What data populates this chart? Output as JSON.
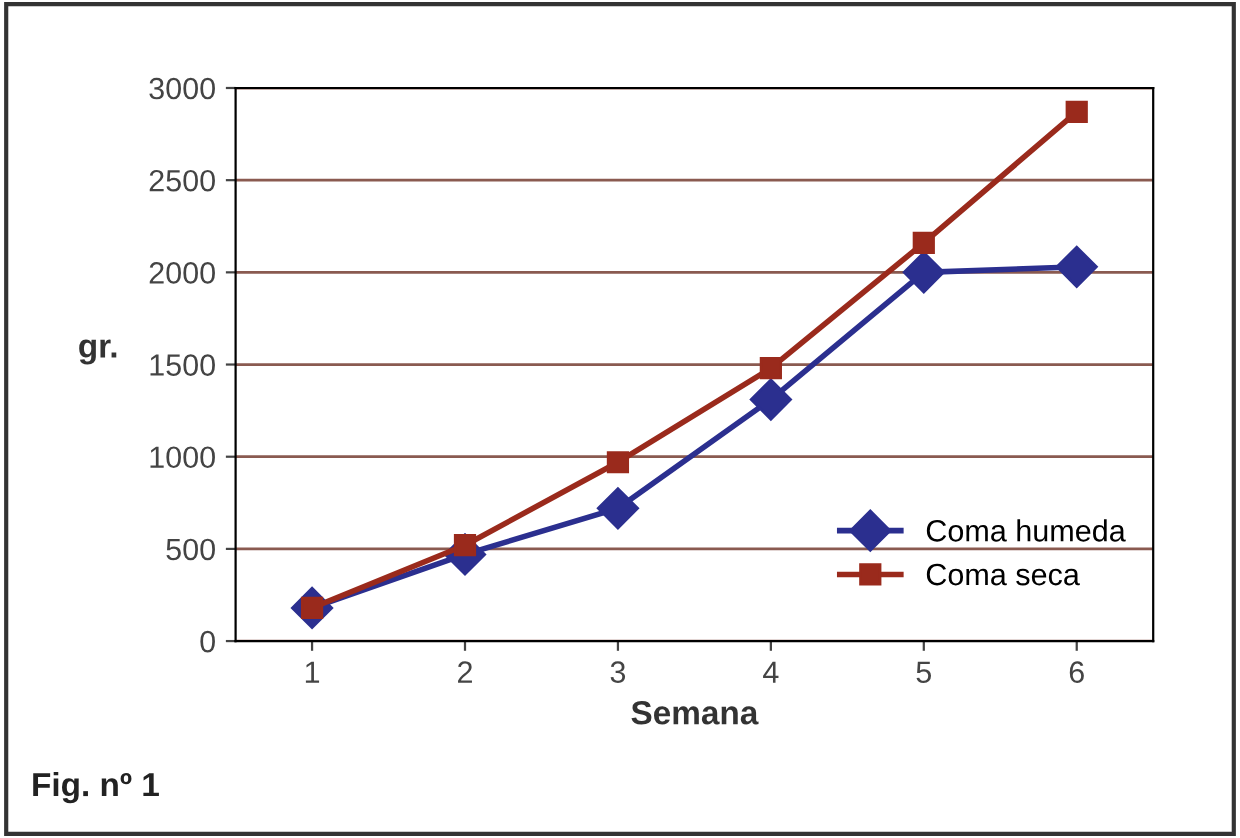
{
  "chart_data": {
    "type": "line",
    "xlabel": "Semana",
    "ylabel": "gr.",
    "categories": [
      "1",
      "2",
      "3",
      "4",
      "5",
      "6"
    ],
    "series": [
      {
        "name": "Coma humeda",
        "color": "#2b2f8f",
        "marker": "diamond",
        "values": [
          180,
          470,
          720,
          1310,
          2000,
          2030
        ]
      },
      {
        "name": "Coma seca",
        "color": "#9a2a1c",
        "marker": "square",
        "values": [
          180,
          520,
          970,
          1480,
          2160,
          2870
        ]
      }
    ],
    "ylim": [
      0,
      3000
    ],
    "yticks": [
      0,
      500,
      1000,
      1500,
      2000,
      2500,
      3000
    ],
    "grid": "y",
    "legend": "bottom right",
    "line_style": "solid",
    "annotations": [
      "Fig. nº 1"
    ]
  }
}
